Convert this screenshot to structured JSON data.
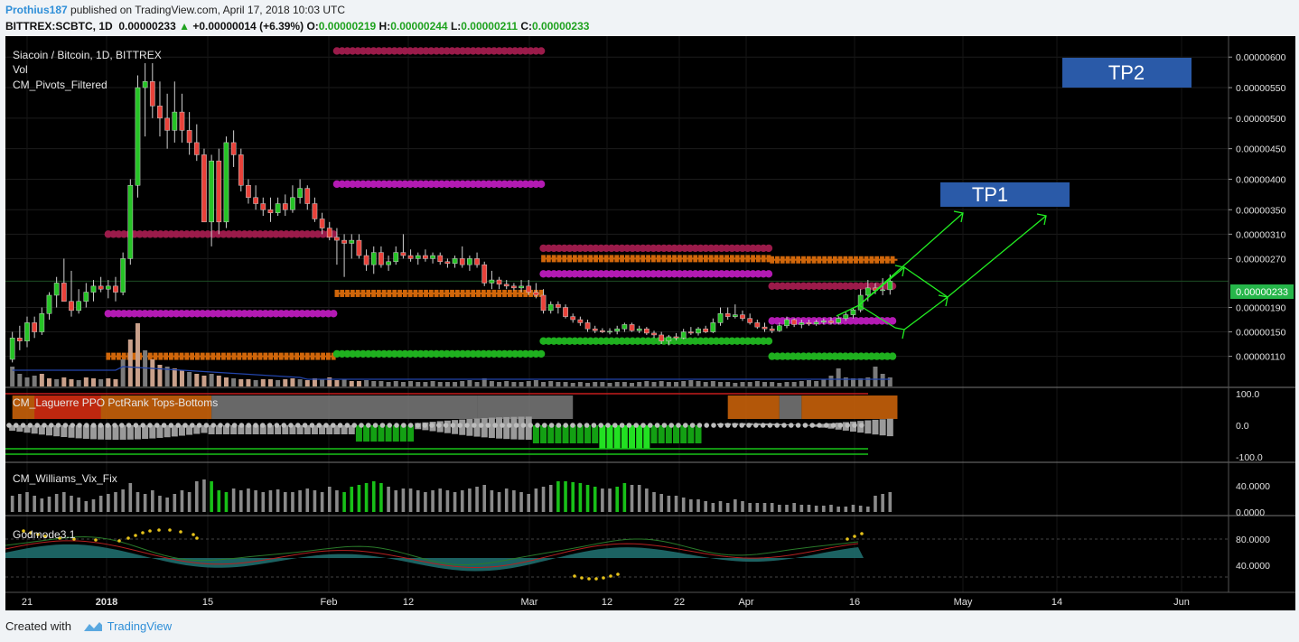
{
  "header": {
    "author": "Prothius187",
    "published_text": " published on TradingView.com, April 17, 2018 10:03 UTC",
    "symbol_tf": "BITTREX:SCBTC, 1D",
    "last": "0.00000233",
    "change": "+0.00000014 (+6.39%)",
    "o_label": "O:",
    "o_val": "0.00000219",
    "h_label": "H:",
    "h_val": "0.00000244",
    "l_label": "L:",
    "l_val": "0.00000211",
    "c_label": "C:",
    "c_val": "0.00000233"
  },
  "legend": {
    "title": "Siacoin / Bitcoin, 1D, BITTREX",
    "vol": "Vol",
    "pivots": "CM_Pivots_Filtered"
  },
  "annotations": {
    "tp1": "TP1",
    "tp2": "TP2"
  },
  "indicators": {
    "laguerre": "CM_Laguerre PPO PctRank Tops-Bottoms",
    "williams": "CM_Williams_Vix_Fix",
    "godmode": "Godmode3.1"
  },
  "price_axis": {
    "ticks": [
      "0.00000600",
      "0.00000550",
      "0.00000500",
      "0.00000450",
      "0.00000400",
      "0.00000350",
      "0.00000310",
      "0.00000270",
      "0.00000233",
      "0.00000190",
      "0.00000150",
      "0.00000110"
    ],
    "current": "0.00000233"
  },
  "pane_axes": {
    "laguerre": [
      "100.0",
      "0.0",
      "-100.0"
    ],
    "williams": [
      "40.0000",
      "0.0000"
    ],
    "godmode": [
      "80.0000",
      "40.0000"
    ]
  },
  "time_axis": [
    "21",
    "2018",
    "15",
    "Feb",
    "12",
    "Mar",
    "12",
    "22",
    "Apr",
    "16",
    "May",
    "14",
    "Jun"
  ],
  "colors": {
    "up": "#26c326",
    "down": "#e9423a",
    "pivot_maroon": "#9b1b4a",
    "pivot_magenta": "#b31ab3",
    "pivot_orange": "#d0660a",
    "pivot_green": "#1fb01f",
    "tp_box": "#2a5aa8",
    "arrows": "#22ee22",
    "current_price": "#26b64a"
  },
  "footer": {
    "created_with": "Created with",
    "brand": "TradingView"
  },
  "chart_data": {
    "type": "candlestick",
    "title": "Siacoin / Bitcoin, 1D, BITTREX",
    "x_range": [
      "2017-12-19",
      "2018-06-05"
    ],
    "y_range": [
      9.5e-07,
      6.3e-06
    ],
    "ohlc": [
      [
        "2017-12-19",
        1.05e-06,
        1.5e-06,
        1e-06,
        1.4e-06
      ],
      [
        "2017-12-20",
        1.4e-06,
        1.6e-06,
        1.2e-06,
        1.35e-06
      ],
      [
        "2017-12-21",
        1.35e-06,
        1.75e-06,
        1.25e-06,
        1.65e-06
      ],
      [
        "2017-12-22",
        1.65e-06,
        1.75e-06,
        1.4e-06,
        1.5e-06
      ],
      [
        "2017-12-23",
        1.5e-06,
        1.9e-06,
        1.45e-06,
        1.8e-06
      ],
      [
        "2017-12-24",
        1.8e-06,
        2.15e-06,
        1.7e-06,
        2.1e-06
      ],
      [
        "2017-12-25",
        2.1e-06,
        2.4e-06,
        1.9e-06,
        2.3e-06
      ],
      [
        "2017-12-26",
        2.3e-06,
        2.7e-06,
        2e-06,
        2e-06
      ],
      [
        "2017-12-27",
        2e-06,
        2.5e-06,
        1.75e-06,
        1.85e-06
      ],
      [
        "2017-12-28",
        1.85e-06,
        2.2e-06,
        1.8e-06,
        2e-06
      ],
      [
        "2017-12-29",
        2e-06,
        2.3e-06,
        1.9e-06,
        2.15e-06
      ],
      [
        "2017-12-30",
        2.15e-06,
        2.35e-06,
        2e-06,
        2.25e-06
      ],
      [
        "2017-12-31",
        2.25e-06,
        2.4e-06,
        2.15e-06,
        2.2e-06
      ],
      [
        "2018-01-01",
        2.2e-06,
        2.35e-06,
        2.05e-06,
        2.25e-06
      ],
      [
        "2018-01-02",
        2.25e-06,
        2.4e-06,
        2e-06,
        2.15e-06
      ],
      [
        "2018-01-03",
        2.15e-06,
        2.8e-06,
        2.1e-06,
        2.7e-06
      ],
      [
        "2018-01-04",
        2.7e-06,
        4e-06,
        2.6e-06,
        3.9e-06
      ],
      [
        "2018-01-05",
        3.9e-06,
        5.7e-06,
        3.7e-06,
        5.5e-06
      ],
      [
        "2018-01-06",
        5.5e-06,
        5.9e-06,
        4.7e-06,
        5.6e-06
      ],
      [
        "2018-01-07",
        5.6e-06,
        5.9e-06,
        5e-06,
        5.2e-06
      ],
      [
        "2018-01-08",
        5.2e-06,
        5.6e-06,
        4.7e-06,
        5e-06
      ],
      [
        "2018-01-09",
        5e-06,
        5.4e-06,
        4.5e-06,
        4.8e-06
      ],
      [
        "2018-01-10",
        4.8e-06,
        5.6e-06,
        4.6e-06,
        5.1e-06
      ],
      [
        "2018-01-11",
        5.1e-06,
        5.4e-06,
        4.6e-06,
        4.8e-06
      ],
      [
        "2018-01-12",
        4.8e-06,
        5.1e-06,
        4.4e-06,
        4.6e-06
      ],
      [
        "2018-01-13",
        4.6e-06,
        4.9e-06,
        4.3e-06,
        4.4e-06
      ],
      [
        "2018-01-14",
        4.4e-06,
        4.5e-06,
        3.3e-06,
        3.3e-06
      ],
      [
        "2018-01-15",
        3.3e-06,
        4.4e-06,
        2.9e-06,
        4.3e-06
      ],
      [
        "2018-01-16",
        4.3e-06,
        4.5e-06,
        3.1e-06,
        3.3e-06
      ],
      [
        "2018-01-17",
        3.3e-06,
        4.7e-06,
        3.2e-06,
        4.6e-06
      ],
      [
        "2018-01-18",
        4.6e-06,
        4.8e-06,
        4.2e-06,
        4.4e-06
      ],
      [
        "2018-01-19",
        4.4e-06,
        4.5e-06,
        3.8e-06,
        3.9e-06
      ],
      [
        "2018-01-20",
        3.9e-06,
        4e-06,
        3.6e-06,
        3.7e-06
      ],
      [
        "2018-01-21",
        3.7e-06,
        3.9e-06,
        3.5e-06,
        3.6e-06
      ],
      [
        "2018-01-22",
        3.6e-06,
        3.7e-06,
        3.4e-06,
        3.5e-06
      ],
      [
        "2018-01-23",
        3.5e-06,
        3.7e-06,
        3.3e-06,
        3.45e-06
      ],
      [
        "2018-01-24",
        3.45e-06,
        3.7e-06,
        3.4e-06,
        3.6e-06
      ],
      [
        "2018-01-25",
        3.6e-06,
        3.75e-06,
        3.4e-06,
        3.5e-06
      ],
      [
        "2018-01-26",
        3.5e-06,
        3.9e-06,
        3.45e-06,
        3.7e-06
      ],
      [
        "2018-01-27",
        3.7e-06,
        4e-06,
        3.6e-06,
        3.85e-06
      ],
      [
        "2018-01-28",
        3.85e-06,
        3.9e-06,
        3.5e-06,
        3.6e-06
      ],
      [
        "2018-01-29",
        3.6e-06,
        3.7e-06,
        3.3e-06,
        3.35e-06
      ],
      [
        "2018-01-30",
        3.35e-06,
        3.45e-06,
        3.1e-06,
        3.2e-06
      ],
      [
        "2018-01-31",
        3.2e-06,
        3.3e-06,
        3e-06,
        3.05e-06
      ],
      [
        "2018-02-01",
        3.05e-06,
        3.2e-06,
        2.6e-06,
        3e-06
      ],
      [
        "2018-02-02",
        3e-06,
        3.1e-06,
        2.4e-06,
        2.95e-06
      ],
      [
        "2018-02-03",
        2.95e-06,
        3.1e-06,
        2.7e-06,
        3e-06
      ],
      [
        "2018-02-04",
        3e-06,
        3.1e-06,
        2.7e-06,
        2.75e-06
      ],
      [
        "2018-02-05",
        2.75e-06,
        2.85e-06,
        2.5e-06,
        2.6e-06
      ],
      [
        "2018-02-06",
        2.6e-06,
        2.9e-06,
        2.45e-06,
        2.8e-06
      ],
      [
        "2018-02-07",
        2.8e-06,
        2.9e-06,
        2.55e-06,
        2.6e-06
      ],
      [
        "2018-02-08",
        2.6e-06,
        2.75e-06,
        2.5e-06,
        2.65e-06
      ],
      [
        "2018-02-09",
        2.65e-06,
        2.9e-06,
        2.6e-06,
        2.8e-06
      ],
      [
        "2018-02-10",
        2.8e-06,
        3.1e-06,
        2.7e-06,
        2.75e-06
      ],
      [
        "2018-02-11",
        2.75e-06,
        2.85e-06,
        2.65e-06,
        2.7e-06
      ],
      [
        "2018-02-12",
        2.7e-06,
        2.8e-06,
        2.6e-06,
        2.75e-06
      ],
      [
        "2018-02-13",
        2.75e-06,
        2.85e-06,
        2.65e-06,
        2.7e-06
      ],
      [
        "2018-02-14",
        2.7e-06,
        2.8e-06,
        2.62e-06,
        2.75e-06
      ],
      [
        "2018-02-15",
        2.75e-06,
        2.8e-06,
        2.6e-06,
        2.65e-06
      ],
      [
        "2018-02-16",
        2.65e-06,
        2.7e-06,
        2.55e-06,
        2.62e-06
      ],
      [
        "2018-02-17",
        2.62e-06,
        2.75e-06,
        2.55e-06,
        2.7e-06
      ],
      [
        "2018-02-18",
        2.7e-06,
        2.9e-06,
        2.55e-06,
        2.6e-06
      ],
      [
        "2018-02-19",
        2.6e-06,
        2.75e-06,
        2.5e-06,
        2.7e-06
      ],
      [
        "2018-02-20",
        2.7e-06,
        2.8e-06,
        2.55e-06,
        2.6e-06
      ],
      [
        "2018-02-21",
        2.6e-06,
        2.65e-06,
        2.25e-06,
        2.3e-06
      ],
      [
        "2018-02-22",
        2.3e-06,
        2.5e-06,
        2.2e-06,
        2.35e-06
      ],
      [
        "2018-02-23",
        2.35e-06,
        2.4e-06,
        2.2e-06,
        2.28e-06
      ],
      [
        "2018-02-24",
        2.28e-06,
        2.35e-06,
        2.2e-06,
        2.25e-06
      ],
      [
        "2018-02-25",
        2.25e-06,
        2.3e-06,
        2.18e-06,
        2.22e-06
      ],
      [
        "2018-02-26",
        2.22e-06,
        2.35e-06,
        2.15e-06,
        2.25e-06
      ],
      [
        "2018-02-27",
        2.25e-06,
        2.35e-06,
        2.1e-06,
        2.15e-06
      ],
      [
        "2018-02-28",
        2.15e-06,
        2.3e-06,
        2.05e-06,
        2.1e-06
      ],
      [
        "2018-03-01",
        2.1e-06,
        2.2e-06,
        1.8e-06,
        1.85e-06
      ],
      [
        "2018-03-02",
        1.85e-06,
        2e-06,
        1.8e-06,
        1.95e-06
      ],
      [
        "2018-03-03",
        1.95e-06,
        2e-06,
        1.8e-06,
        1.9e-06
      ],
      [
        "2018-03-04",
        1.9e-06,
        1.95e-06,
        1.72e-06,
        1.75e-06
      ],
      [
        "2018-03-05",
        1.75e-06,
        1.8e-06,
        1.65e-06,
        1.7e-06
      ],
      [
        "2018-03-06",
        1.7e-06,
        1.75e-06,
        1.6e-06,
        1.65e-06
      ],
      [
        "2018-03-07",
        1.65e-06,
        1.7e-06,
        1.5e-06,
        1.55e-06
      ],
      [
        "2018-03-08",
        1.55e-06,
        1.6e-06,
        1.48e-06,
        1.52e-06
      ],
      [
        "2018-03-09",
        1.52e-06,
        1.56e-06,
        1.48e-06,
        1.5e-06
      ],
      [
        "2018-03-10",
        1.5e-06,
        1.56e-06,
        1.46e-06,
        1.51e-06
      ],
      [
        "2018-03-11",
        1.51e-06,
        1.6e-06,
        1.46e-06,
        1.55e-06
      ],
      [
        "2018-03-12",
        1.55e-06,
        1.65e-06,
        1.5e-06,
        1.62e-06
      ],
      [
        "2018-03-13",
        1.62e-06,
        1.65e-06,
        1.5e-06,
        1.52e-06
      ],
      [
        "2018-03-14",
        1.52e-06,
        1.6e-06,
        1.48e-06,
        1.55e-06
      ],
      [
        "2018-03-15",
        1.55e-06,
        1.58e-06,
        1.45e-06,
        1.48e-06
      ],
      [
        "2018-03-16",
        1.48e-06,
        1.52e-06,
        1.4e-06,
        1.45e-06
      ],
      [
        "2018-03-17",
        1.45e-06,
        1.5e-06,
        1.3e-06,
        1.35e-06
      ],
      [
        "2018-03-18",
        1.35e-06,
        1.45e-06,
        1.28e-06,
        1.42e-06
      ],
      [
        "2018-03-19",
        1.42e-06,
        1.48e-06,
        1.36e-06,
        1.4e-06
      ],
      [
        "2018-03-20",
        1.4e-06,
        1.55e-06,
        1.38e-06,
        1.5e-06
      ],
      [
        "2018-03-21",
        1.5e-06,
        1.58e-06,
        1.45e-06,
        1.48e-06
      ],
      [
        "2018-03-22",
        1.48e-06,
        1.58e-06,
        1.44e-06,
        1.55e-06
      ],
      [
        "2018-03-23",
        1.55e-06,
        1.6e-06,
        1.48e-06,
        1.5e-06
      ],
      [
        "2018-03-24",
        1.5e-06,
        1.72e-06,
        1.48e-06,
        1.65e-06
      ],
      [
        "2018-03-25",
        1.65e-06,
        1.9e-06,
        1.6e-06,
        1.8e-06
      ],
      [
        "2018-03-26",
        1.8e-06,
        1.9e-06,
        1.7e-06,
        1.75e-06
      ],
      [
        "2018-03-27",
        1.75e-06,
        1.95e-06,
        1.72e-06,
        1.78e-06
      ],
      [
        "2018-03-28",
        1.78e-06,
        1.85e-06,
        1.68e-06,
        1.72e-06
      ],
      [
        "2018-03-29",
        1.72e-06,
        1.8e-06,
        1.62e-06,
        1.65e-06
      ],
      [
        "2018-03-30",
        1.65e-06,
        1.7e-06,
        1.55e-06,
        1.58e-06
      ],
      [
        "2018-03-31",
        1.58e-06,
        1.65e-06,
        1.5e-06,
        1.55e-06
      ],
      [
        "2018-04-01",
        1.55e-06,
        1.6e-06,
        1.48e-06,
        1.52e-06
      ],
      [
        "2018-04-02",
        1.52e-06,
        1.65e-06,
        1.5e-06,
        1.6e-06
      ],
      [
        "2018-04-03",
        1.6e-06,
        1.75e-06,
        1.56e-06,
        1.7e-06
      ],
      [
        "2018-04-04",
        1.7e-06,
        1.72e-06,
        1.58e-06,
        1.62e-06
      ],
      [
        "2018-04-05",
        1.62e-06,
        1.7e-06,
        1.56e-06,
        1.65e-06
      ],
      [
        "2018-04-06",
        1.65e-06,
        1.7e-06,
        1.6e-06,
        1.63e-06
      ],
      [
        "2018-04-07",
        1.63e-06,
        1.7e-06,
        1.6e-06,
        1.66e-06
      ],
      [
        "2018-04-08",
        1.66e-06,
        1.72e-06,
        1.62e-06,
        1.68e-06
      ],
      [
        "2018-04-09",
        1.68e-06,
        1.74e-06,
        1.62e-06,
        1.65e-06
      ],
      [
        "2018-04-10",
        1.65e-06,
        1.76e-06,
        1.62e-06,
        1.72e-06
      ],
      [
        "2018-04-11",
        1.72e-06,
        1.82e-06,
        1.68e-06,
        1.78e-06
      ],
      [
        "2018-04-12",
        1.78e-06,
        1.9e-06,
        1.72e-06,
        1.86e-06
      ],
      [
        "2018-04-13",
        1.86e-06,
        2.2e-06,
        1.82e-06,
        2.1e-06
      ],
      [
        "2018-04-14",
        2.1e-06,
        2.35e-06,
        2e-06,
        2.22e-06
      ],
      [
        "2018-04-15",
        2.22e-06,
        2.3e-06,
        2.12e-06,
        2.18e-06
      ],
      [
        "2018-04-16",
        2.18e-06,
        2.38e-06,
        2.1e-06,
        2.19e-06
      ],
      [
        "2018-04-17",
        2.19e-06,
        2.44e-06,
        2.11e-06,
        2.33e-06
      ]
    ],
    "pivot_levels": [
      {
        "color": "maroon",
        "price": 6.1e-06,
        "from": "2018-02-01",
        "to": "2018-02-28"
      },
      {
        "color": "magenta",
        "price": 3.92e-06,
        "from": "2018-02-01",
        "to": "2018-02-28"
      },
      {
        "color": "maroon",
        "price": 3.1e-06,
        "from": "2018-01-01",
        "to": "2018-01-31"
      },
      {
        "color": "magenta",
        "price": 1.8e-06,
        "from": "2018-01-01",
        "to": "2018-01-31"
      },
      {
        "color": "orange",
        "price": 1.1e-06,
        "from": "2018-01-01",
        "to": "2018-01-31"
      },
      {
        "color": "orange",
        "price": 2.13e-06,
        "from": "2018-02-01",
        "to": "2018-02-28"
      },
      {
        "color": "green",
        "price": 1.14e-06,
        "from": "2018-02-01",
        "to": "2018-02-28"
      },
      {
        "color": "maroon",
        "price": 2.87e-06,
        "from": "2018-03-01",
        "to": "2018-03-31"
      },
      {
        "color": "orange",
        "price": 2.7e-06,
        "from": "2018-03-01",
        "to": "2018-03-31"
      },
      {
        "color": "magenta",
        "price": 2.45e-06,
        "from": "2018-03-01",
        "to": "2018-03-31"
      },
      {
        "color": "green",
        "price": 1.35e-06,
        "from": "2018-03-01",
        "to": "2018-03-31"
      },
      {
        "color": "orange",
        "price": 2.68e-06,
        "from": "2018-04-01",
        "to": "2018-04-17"
      },
      {
        "color": "maroon",
        "price": 2.25e-06,
        "from": "2018-04-01",
        "to": "2018-04-17"
      },
      {
        "color": "magenta",
        "price": 1.68e-06,
        "from": "2018-04-01",
        "to": "2018-04-17"
      },
      {
        "color": "green",
        "price": 1.1e-06,
        "from": "2018-04-01",
        "to": "2018-04-17"
      }
    ],
    "tp_levels": [
      {
        "label": "TP1",
        "price": 3.85e-06
      },
      {
        "label": "TP2",
        "price": 5.8e-06
      }
    ]
  }
}
